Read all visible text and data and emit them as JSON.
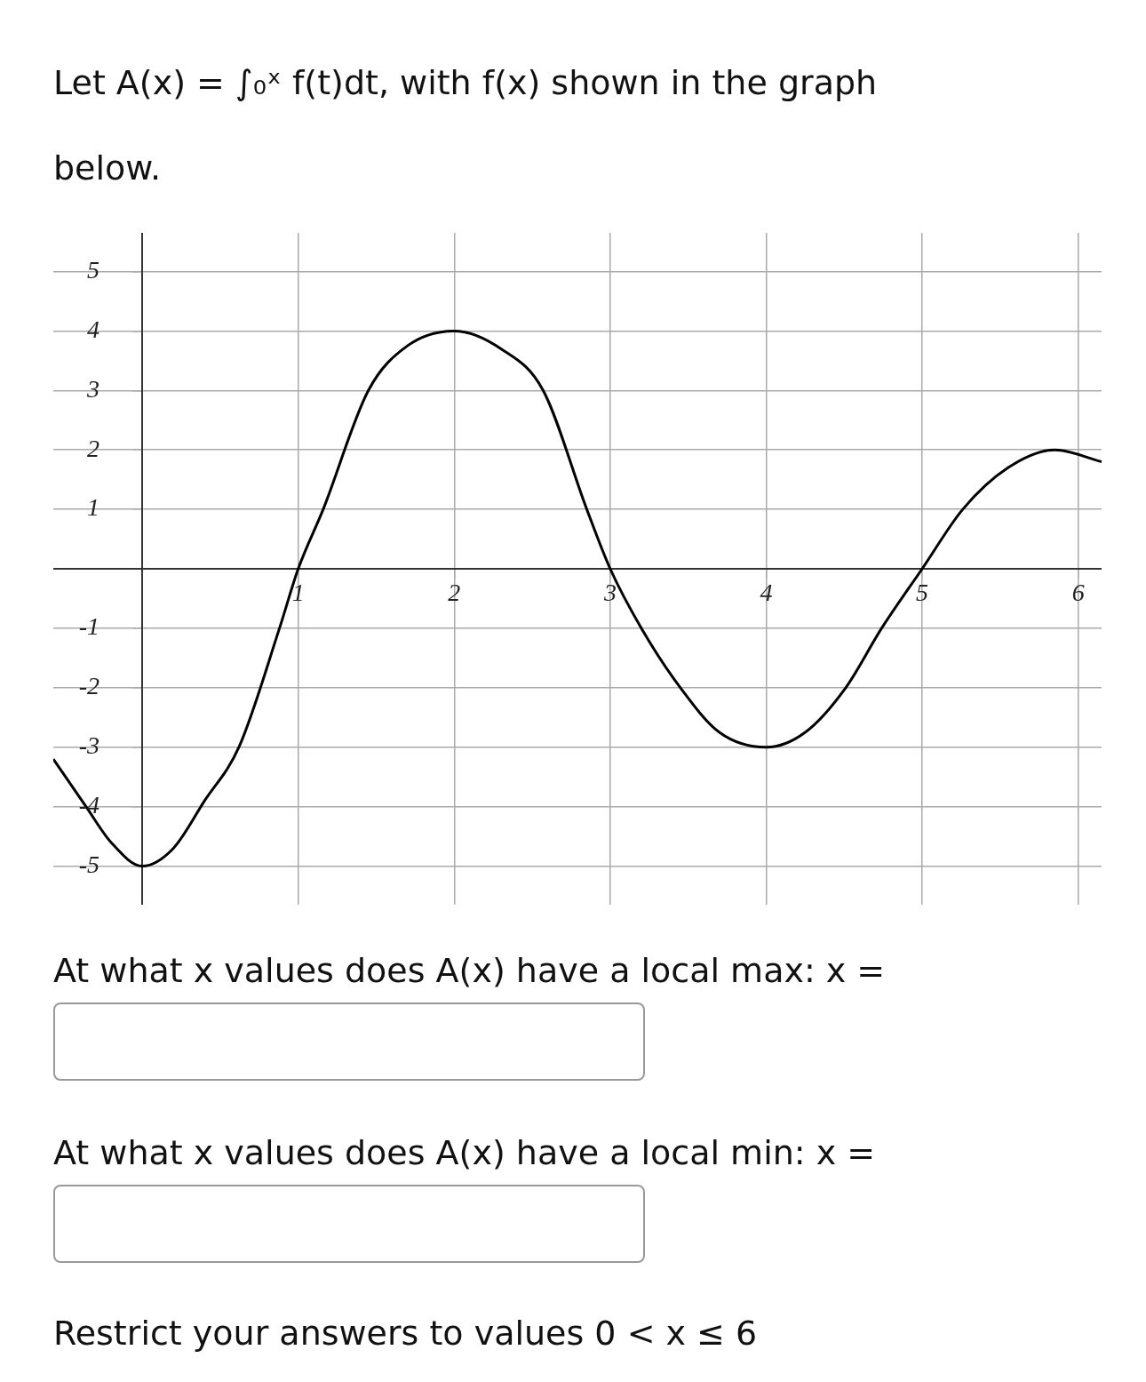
{
  "chart_data": {
    "type": "line",
    "title": "Let A(x) = ∫₀ˣ f(t)dt, with f(x) shown in the graph below.",
    "x": [
      -0.57,
      -0.36,
      -0.2,
      0,
      0.2,
      0.4,
      0.62,
      0.88,
      1,
      1.16,
      1.45,
      1.7,
      2,
      2.3,
      2.57,
      2.85,
      3,
      3.2,
      3.45,
      3.7,
      4,
      4.25,
      4.51,
      4.74,
      5,
      5.26,
      5.55,
      5.85,
      6.15
    ],
    "values": [
      -3.2,
      -4,
      -4.6,
      -5,
      -4.7,
      -3.9,
      -3,
      -1,
      0,
      1,
      3,
      3.75,
      4,
      3.7,
      3,
      1,
      0,
      -1,
      -2,
      -2.75,
      -3,
      -2.75,
      -2,
      -1,
      0,
      1,
      1.7,
      2,
      1.8
    ],
    "color": "#000000",
    "xlim": [
      -0.57,
      6.15
    ],
    "ylim": [
      -5.65,
      5.65
    ],
    "xticks": [
      1,
      2,
      3,
      4,
      5,
      6
    ],
    "yticks": [
      -5,
      -4,
      -3,
      -2,
      -1,
      1,
      2,
      3,
      4,
      5
    ],
    "grid": true,
    "marker": "none",
    "annotations": [
      "At what x values does A(x) have a local max: x =",
      "At what x values does A(x) have a local min: x =",
      "Restrict your answers to values 0 < x ≤ 6"
    ]
  }
}
